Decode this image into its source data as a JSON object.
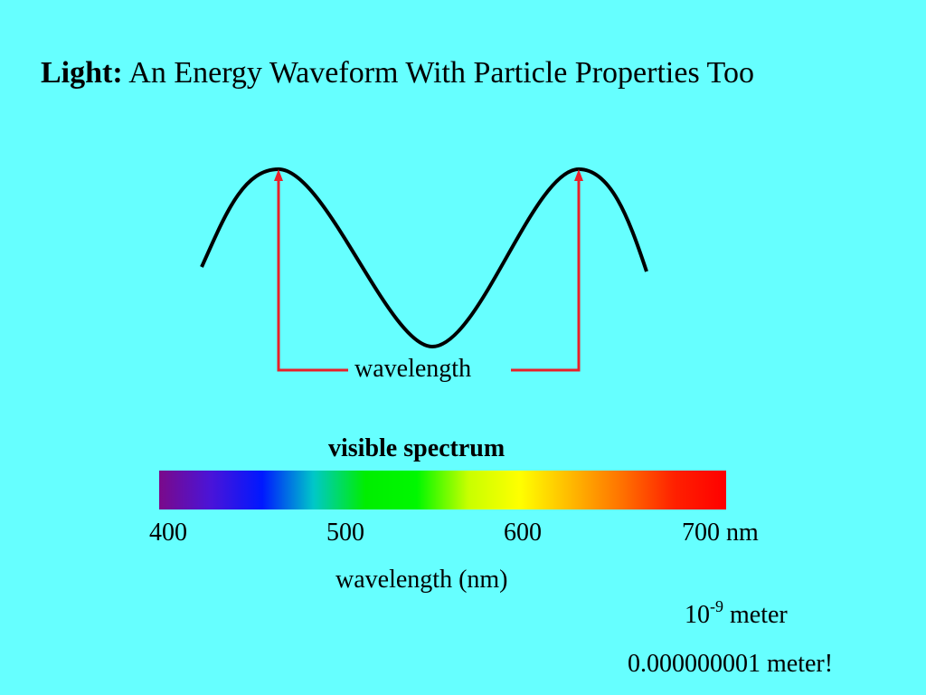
{
  "title": {
    "bold": "Light:",
    "rest": " An Energy Waveform With Particle Properties Too"
  },
  "wave_diagram": {
    "label": "wavelength",
    "wave_color": "#000000",
    "arrow_color": "#e8202a"
  },
  "spectrum": {
    "label": "visible spectrum",
    "ticks": [
      "400",
      "500",
      "600",
      "700 nm"
    ],
    "axis_label": "wavelength (nm)",
    "colors": [
      "#7a0a8a",
      "#4a14d8",
      "#0018ff",
      "#00c8c8",
      "#00ee00",
      "#00f800",
      "#c8ff00",
      "#ffff00",
      "#ffb800",
      "#ff7000",
      "#ff2000",
      "#ff0000"
    ]
  },
  "units": {
    "base": "10",
    "exponent": "-9",
    "unit": " meter",
    "decimal": "0.000000001 meter!"
  }
}
